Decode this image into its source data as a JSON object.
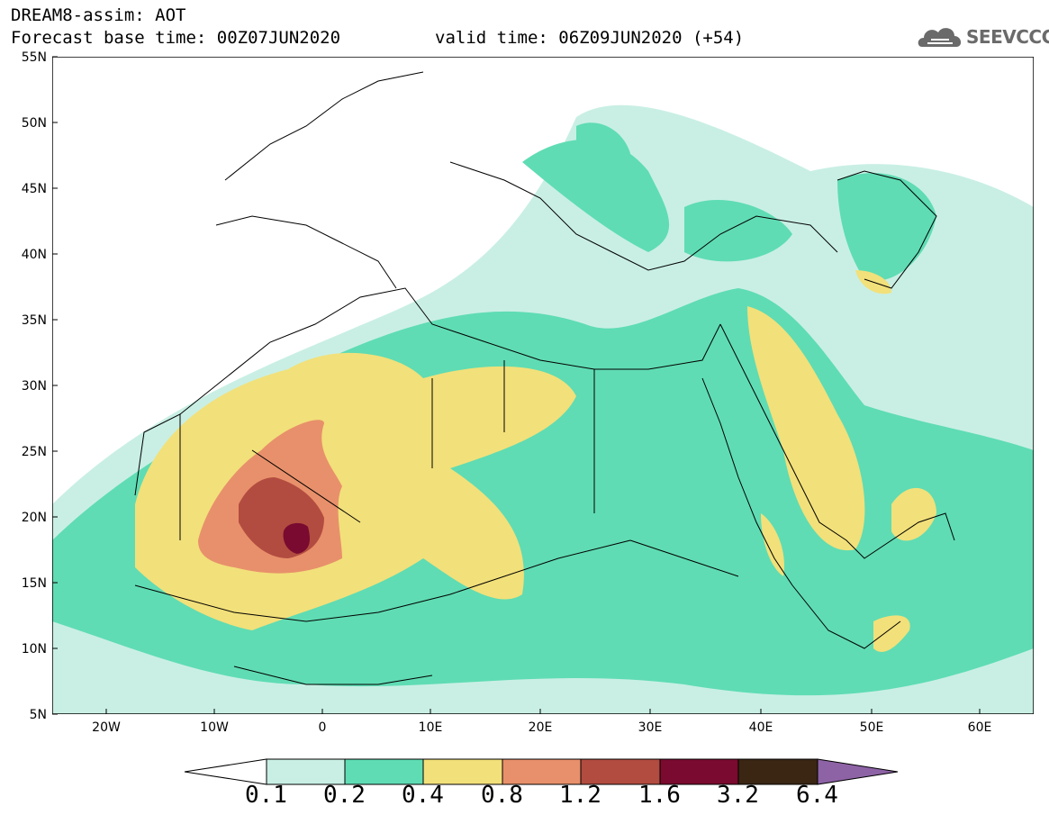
{
  "title": {
    "line1": "DREAM8-assim: AOT",
    "line2": "Forecast base time: 00Z07JUN2020",
    "line2b": "valid time: 06Z09JUN2020 (+54)"
  },
  "logo": {
    "text": "SEEVCCC",
    "icon": "cloud-icon"
  },
  "map": {
    "lat_ticks": [
      "55N",
      "50N",
      "45N",
      "40N",
      "35N",
      "30N",
      "25N",
      "20N",
      "15N",
      "10N",
      "5N"
    ],
    "lon_ticks": [
      "20W",
      "10W",
      "0",
      "10E",
      "20E",
      "30E",
      "40E",
      "50E",
      "60E"
    ],
    "extent": {
      "lon": [
        -25,
        65
      ],
      "lat": [
        5,
        55
      ]
    }
  },
  "colorbar": {
    "labels": [
      "0.1",
      "0.2",
      "0.4",
      "0.8",
      "1.2",
      "1.6",
      "3.2",
      "6.4"
    ],
    "colors": [
      "#ffffff",
      "#c9efe4",
      "#5fdcb3",
      "#f2e07a",
      "#e8906b",
      "#b24c40",
      "#7a0a2f",
      "#3a2613",
      "#8e63a6"
    ]
  }
}
